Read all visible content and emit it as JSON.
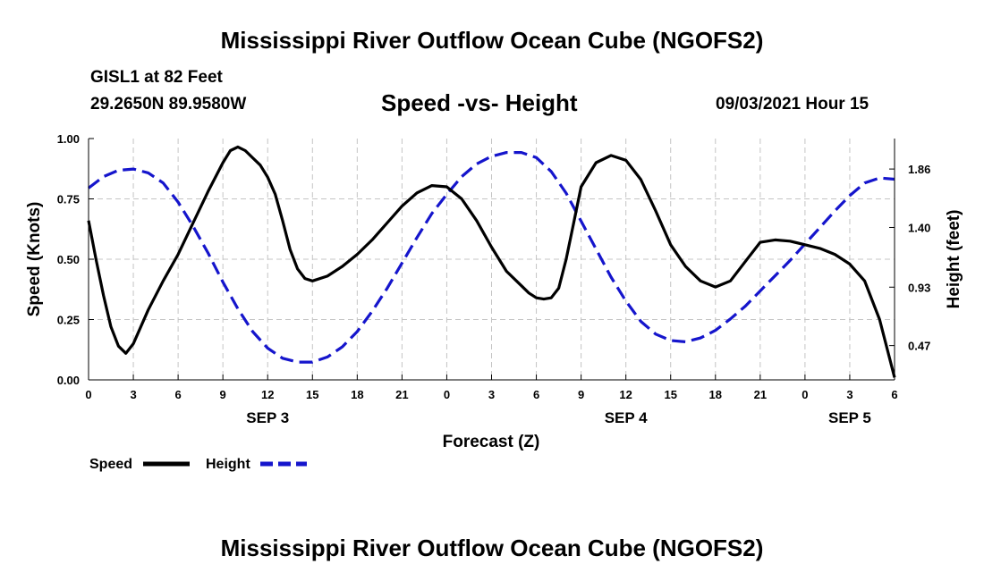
{
  "header": {
    "title": "Mississippi River Outflow Ocean Cube (NGOFS2)",
    "station": "GISL1 at 82 Feet",
    "coords": "29.2650N  89.9580W",
    "datetime": "09/03/2021 Hour 15"
  },
  "footer": {
    "title": "Mississippi River Outflow Ocean Cube (NGOFS2)"
  },
  "chart_data": {
    "type": "line",
    "title": "Speed -vs- Height",
    "xlabel": "Forecast (Z)",
    "ylabel": "Speed (Knots)",
    "y2label": "Height (feet)",
    "x_range_hours": [
      0,
      54
    ],
    "x_tick_labels": [
      "0",
      "3",
      "6",
      "9",
      "12",
      "15",
      "18",
      "21",
      "0",
      "3",
      "6",
      "9",
      "12",
      "15",
      "18",
      "21",
      "0",
      "3",
      "6"
    ],
    "day_labels": [
      {
        "text": "SEP 3",
        "hour": 12
      },
      {
        "text": "SEP 4",
        "hour": 36
      },
      {
        "text": "SEP 5",
        "hour": 51
      }
    ],
    "ylim": [
      0,
      1.0
    ],
    "y_ticks": [
      "0.00",
      "0.25",
      "0.50",
      "0.75",
      "1.00"
    ],
    "y2lim": [
      0.2,
      2.1
    ],
    "y2_ticks": [
      "0.47",
      "0.93",
      "1.40",
      "1.86"
    ],
    "grid": true,
    "legend": {
      "position": "bottom-left"
    },
    "colors": {
      "speed": "#000000",
      "height": "#1515cc"
    },
    "series": [
      {
        "name": "Speed",
        "axis": "left",
        "x": [
          0,
          0.5,
          1,
          1.5,
          2,
          2.5,
          3,
          4,
          5,
          6,
          7,
          8,
          9,
          9.5,
          10,
          10.5,
          11,
          11.5,
          12,
          12.5,
          13,
          13.5,
          14,
          14.5,
          15,
          16,
          17,
          18,
          19,
          20,
          21,
          22,
          23,
          24,
          25,
          26,
          27,
          28,
          29,
          29.5,
          30,
          30.5,
          31,
          31.5,
          32,
          32.5,
          33,
          34,
          35,
          36,
          37,
          38,
          39,
          40,
          41,
          42,
          43,
          44,
          45,
          46,
          47,
          48,
          49,
          50,
          51,
          52,
          53,
          54
        ],
        "values": [
          0.66,
          0.5,
          0.35,
          0.22,
          0.14,
          0.11,
          0.15,
          0.29,
          0.41,
          0.52,
          0.65,
          0.78,
          0.9,
          0.95,
          0.965,
          0.95,
          0.92,
          0.89,
          0.84,
          0.77,
          0.66,
          0.54,
          0.46,
          0.42,
          0.41,
          0.43,
          0.47,
          0.52,
          0.58,
          0.65,
          0.72,
          0.775,
          0.805,
          0.8,
          0.75,
          0.66,
          0.55,
          0.45,
          0.39,
          0.36,
          0.34,
          0.335,
          0.34,
          0.38,
          0.5,
          0.65,
          0.8,
          0.9,
          0.93,
          0.91,
          0.83,
          0.7,
          0.56,
          0.47,
          0.41,
          0.385,
          0.41,
          0.49,
          0.57,
          0.58,
          0.575,
          0.56,
          0.545,
          0.52,
          0.48,
          0.41,
          0.25,
          0.01
        ]
      },
      {
        "name": "Height",
        "axis": "right",
        "x": [
          0,
          1,
          2,
          3,
          4,
          5,
          6,
          7,
          8,
          9,
          10,
          11,
          12,
          13,
          14,
          15,
          16,
          17,
          18,
          19,
          20,
          21,
          22,
          23,
          24,
          25,
          26,
          27,
          28,
          29,
          30,
          31,
          32,
          33,
          34,
          35,
          36,
          37,
          38,
          39,
          40,
          41,
          42,
          43,
          44,
          45,
          46,
          47,
          48,
          49,
          50,
          51,
          52,
          53,
          54
        ],
        "values": [
          1.71,
          1.8,
          1.85,
          1.86,
          1.83,
          1.75,
          1.6,
          1.41,
          1.2,
          0.97,
          0.76,
          0.58,
          0.45,
          0.37,
          0.34,
          0.34,
          0.38,
          0.46,
          0.58,
          0.74,
          0.92,
          1.12,
          1.32,
          1.51,
          1.66,
          1.8,
          1.9,
          1.96,
          1.99,
          1.99,
          1.95,
          1.84,
          1.67,
          1.45,
          1.23,
          1.01,
          0.82,
          0.66,
          0.56,
          0.51,
          0.5,
          0.53,
          0.59,
          0.68,
          0.78,
          0.9,
          1.02,
          1.14,
          1.27,
          1.4,
          1.53,
          1.65,
          1.75,
          1.79,
          1.78
        ]
      }
    ]
  }
}
